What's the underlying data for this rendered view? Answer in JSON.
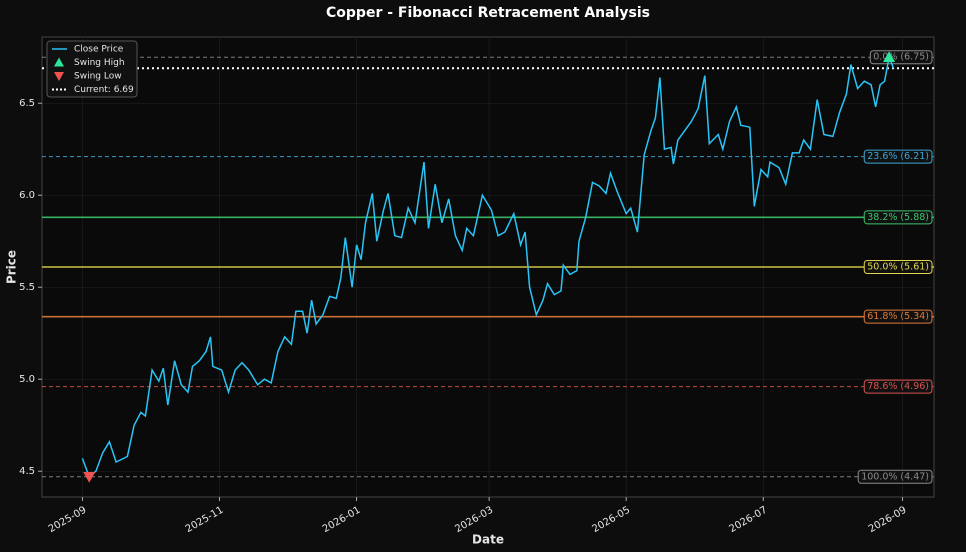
{
  "chart_data": {
    "type": "line",
    "title": "Copper - Fibonacci Retracement Analysis",
    "x_label": "Date",
    "y_label": "Price",
    "x": [
      "2025-09-01",
      "2025-09-04",
      "2025-09-07",
      "2025-09-10",
      "2025-09-13",
      "2025-09-16",
      "2025-09-21",
      "2025-09-24",
      "2025-09-27",
      "2025-09-29",
      "2025-10-02",
      "2025-10-05",
      "2025-10-07",
      "2025-10-09",
      "2025-10-12",
      "2025-10-15",
      "2025-10-18",
      "2025-10-20",
      "2025-10-23",
      "2025-10-26",
      "2025-10-28",
      "2025-10-29",
      "2025-11-02",
      "2025-11-05",
      "2025-11-08",
      "2025-11-11",
      "2025-11-14",
      "2025-11-18",
      "2025-11-21",
      "2025-11-24",
      "2025-11-27",
      "2025-11-30",
      "2025-12-03",
      "2025-12-05",
      "2025-12-08",
      "2025-12-10",
      "2025-12-12",
      "2025-12-14",
      "2025-12-17",
      "2025-12-20",
      "2025-12-23",
      "2025-12-25",
      "2025-12-27",
      "2025-12-30",
      "2026-01-01",
      "2026-01-03",
      "2026-01-05",
      "2026-01-08",
      "2026-01-10",
      "2026-01-13",
      "2026-01-15",
      "2026-01-18",
      "2026-01-21",
      "2026-01-24",
      "2026-01-27",
      "2026-01-31",
      "2026-02-02",
      "2026-02-05",
      "2026-02-08",
      "2026-02-11",
      "2026-02-14",
      "2026-02-17",
      "2026-02-19",
      "2026-02-22",
      "2026-02-26",
      "2026-03-02",
      "2026-03-05",
      "2026-03-08",
      "2026-03-12",
      "2026-03-15",
      "2026-03-17",
      "2026-03-19",
      "2026-03-22",
      "2026-03-25",
      "2026-03-27",
      "2026-03-30",
      "2026-04-02",
      "2026-04-03",
      "2026-04-06",
      "2026-04-09",
      "2026-04-10",
      "2026-04-13",
      "2026-04-16",
      "2026-04-19",
      "2026-04-22",
      "2026-04-24",
      "2026-04-27",
      "2026-05-01",
      "2026-05-03",
      "2026-05-06",
      "2026-05-09",
      "2026-05-12",
      "2026-05-14",
      "2026-05-16",
      "2026-05-18",
      "2026-05-21",
      "2026-05-22",
      "2026-05-24",
      "2026-05-27",
      "2026-05-30",
      "2026-06-02",
      "2026-06-05",
      "2026-06-07",
      "2026-06-11",
      "2026-06-13",
      "2026-06-16",
      "2026-06-19",
      "2026-06-21",
      "2026-06-25",
      "2026-06-27",
      "2026-06-30",
      "2026-07-03",
      "2026-07-04",
      "2026-07-08",
      "2026-07-11",
      "2026-07-14",
      "2026-07-17",
      "2026-07-19",
      "2026-07-22",
      "2026-07-25",
      "2026-07-28",
      "2026-08-01",
      "2026-08-04",
      "2026-08-07",
      "2026-08-09",
      "2026-08-12",
      "2026-08-15",
      "2026-08-18",
      "2026-08-20",
      "2026-08-22",
      "2026-08-24",
      "2026-08-26",
      "2026-08-28"
    ],
    "series": [
      {
        "name": "Close Price",
        "color": "#29c5f6",
        "values": [
          4.57,
          4.47,
          4.5,
          4.6,
          4.66,
          4.55,
          4.58,
          4.75,
          4.82,
          4.8,
          5.05,
          4.99,
          5.06,
          4.86,
          5.1,
          4.97,
          4.93,
          5.07,
          5.1,
          5.15,
          5.23,
          5.07,
          5.05,
          4.93,
          5.05,
          5.09,
          5.05,
          4.97,
          5.0,
          4.98,
          5.15,
          5.23,
          5.19,
          5.37,
          5.37,
          5.25,
          5.43,
          5.3,
          5.35,
          5.45,
          5.44,
          5.55,
          5.77,
          5.5,
          5.73,
          5.65,
          5.85,
          6.01,
          5.75,
          5.92,
          6.01,
          5.78,
          5.77,
          5.93,
          5.85,
          6.18,
          5.82,
          6.06,
          5.85,
          5.98,
          5.78,
          5.7,
          5.82,
          5.78,
          6.0,
          5.92,
          5.78,
          5.8,
          5.9,
          5.73,
          5.8,
          5.5,
          5.35,
          5.43,
          5.52,
          5.46,
          5.48,
          5.62,
          5.57,
          5.59,
          5.75,
          5.88,
          6.07,
          6.05,
          6.01,
          6.12,
          6.02,
          5.9,
          5.93,
          5.8,
          6.22,
          6.35,
          6.42,
          6.64,
          6.25,
          6.26,
          6.17,
          6.3,
          6.35,
          6.4,
          6.47,
          6.65,
          6.28,
          6.33,
          6.25,
          6.4,
          6.48,
          6.38,
          6.37,
          5.94,
          6.14,
          6.1,
          6.18,
          6.15,
          6.06,
          6.23,
          6.23,
          6.3,
          6.25,
          6.52,
          6.33,
          6.32,
          6.45,
          6.55,
          6.71,
          6.58,
          6.62,
          6.6,
          6.48,
          6.6,
          6.62,
          6.75,
          6.69
        ]
      }
    ],
    "swing_high": {
      "name": "Swing High",
      "x": "2026-08-26",
      "value": 6.75,
      "color": "#2ee59d"
    },
    "swing_low": {
      "name": "Swing Low",
      "x": "2025-09-04",
      "value": 4.47,
      "color": "#ef5350"
    },
    "current": {
      "name": "Current: 6.69",
      "value": 6.69,
      "color": "#ffffff"
    },
    "fib_levels": [
      {
        "label": "0.0% (6.75)",
        "value": 6.75,
        "color": "#8a8a8a",
        "style": "dashed"
      },
      {
        "label": "23.6% (6.21)",
        "value": 6.21,
        "color": "#3aa7d6",
        "style": "dashed"
      },
      {
        "label": "38.2% (5.88)",
        "value": 5.88,
        "color": "#3ec46d",
        "style": "solid"
      },
      {
        "label": "50.0% (5.61)",
        "value": 5.61,
        "color": "#e3d64c",
        "style": "solid"
      },
      {
        "label": "61.8% (5.34)",
        "value": 5.34,
        "color": "#e07b39",
        "style": "solid"
      },
      {
        "label": "78.6% (4.96)",
        "value": 4.96,
        "color": "#d9534f",
        "style": "dashed"
      },
      {
        "label": "100.0% (4.47)",
        "value": 4.47,
        "color": "#8a8a8a",
        "style": "dashed"
      }
    ],
    "xlim": [
      "2025-08-14",
      "2026-09-15"
    ],
    "xticks": [
      "2025-09",
      "2025-11",
      "2026-01",
      "2026-03",
      "2026-05",
      "2026-07",
      "2026-09"
    ],
    "ylim": [
      4.36,
      6.86
    ],
    "yticks": [
      4.5,
      {
        "value": 5,
        "label": "5.0"
      },
      5.5,
      {
        "value": 6,
        "label": "6.0"
      },
      6.5
    ],
    "grid": true,
    "legend": "upper left"
  }
}
